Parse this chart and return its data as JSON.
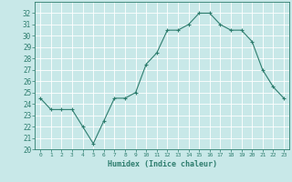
{
  "x": [
    0,
    1,
    2,
    3,
    4,
    5,
    6,
    7,
    8,
    9,
    10,
    11,
    12,
    13,
    14,
    15,
    16,
    17,
    18,
    19,
    20,
    21,
    22,
    23
  ],
  "y": [
    24.5,
    23.5,
    23.5,
    23.5,
    22.0,
    20.5,
    22.5,
    24.5,
    24.5,
    25.0,
    27.5,
    28.5,
    30.5,
    30.5,
    31.0,
    32.0,
    32.0,
    31.0,
    30.5,
    30.5,
    29.5,
    27.0,
    25.5,
    24.5
  ],
  "line_color": "#2e7d6e",
  "marker": "+",
  "bg_color": "#c8e8e8",
  "grid_color": "#ffffff",
  "xlabel": "Humidex (Indice chaleur)",
  "ylim": [
    20,
    33
  ],
  "xlim": [
    -0.5,
    23.5
  ],
  "yticks": [
    20,
    21,
    22,
    23,
    24,
    25,
    26,
    27,
    28,
    29,
    30,
    31,
    32
  ],
  "xticks": [
    0,
    1,
    2,
    3,
    4,
    5,
    6,
    7,
    8,
    9,
    10,
    11,
    12,
    13,
    14,
    15,
    16,
    17,
    18,
    19,
    20,
    21,
    22,
    23
  ]
}
